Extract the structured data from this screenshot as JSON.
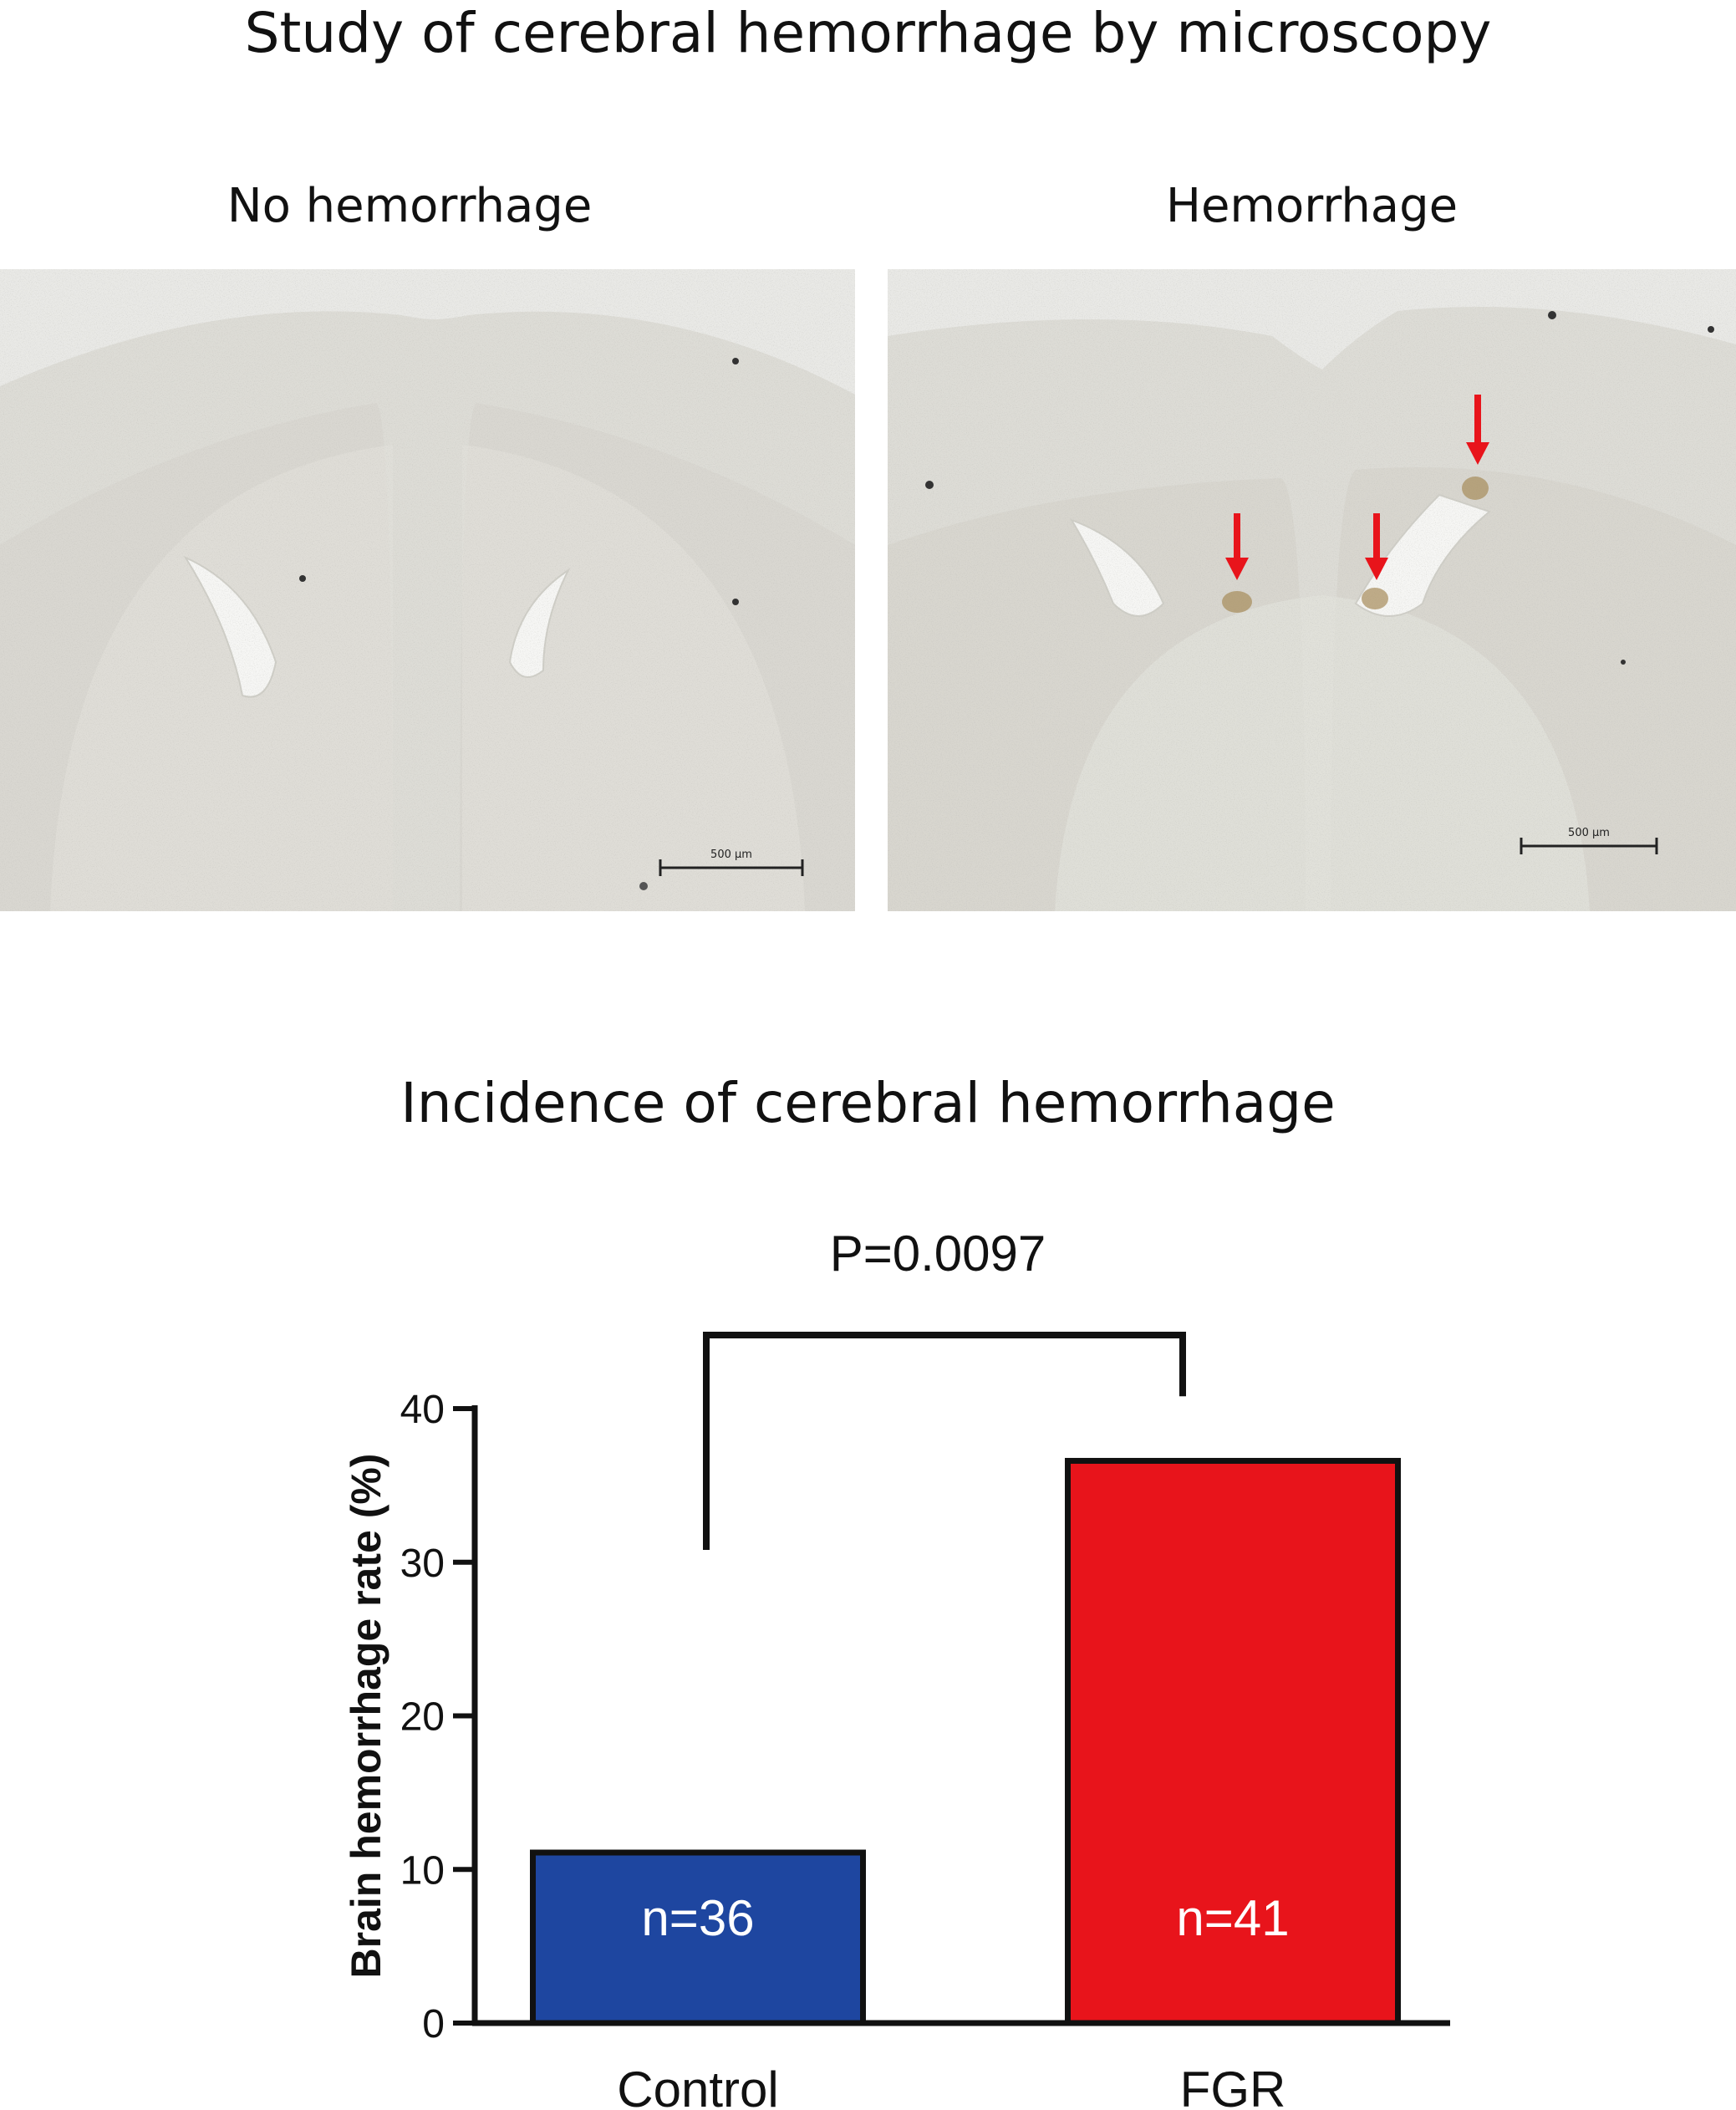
{
  "figure": {
    "title_top": "Study of cerebral hemorrhage by microscopy",
    "panels": [
      {
        "label": "No hemorrhage",
        "scale_bar_label": "500 µm"
      },
      {
        "label": "Hemorrhage",
        "scale_bar_label": "500 µm"
      }
    ],
    "title_chart": "Incidence of cerebral hemorrhage"
  },
  "chart_data": {
    "type": "bar",
    "title": "Incidence of cerebral hemorrhage",
    "categories": [
      "Control",
      "FGR"
    ],
    "values": [
      11.1,
      36.6
    ],
    "bar_labels": [
      "n=36",
      "n=41"
    ],
    "colors": [
      "#1e46a0",
      "#e8141b"
    ],
    "xlabel": "",
    "ylabel": "Brain hemorrhage rate (%)",
    "ylim": [
      0,
      40
    ],
    "yticks": [
      0,
      10,
      20,
      30,
      40
    ],
    "annotation": "P=0.0097",
    "grid": false,
    "legend": "none"
  }
}
